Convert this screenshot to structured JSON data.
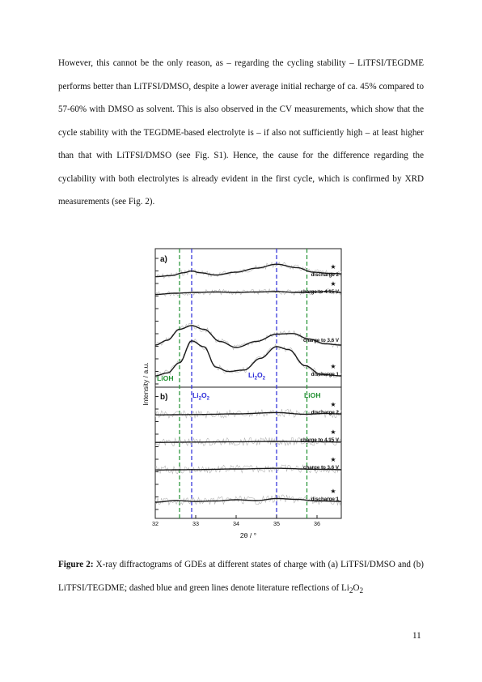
{
  "body": {
    "paragraph": "However, this cannot be the only reason, as – regarding the cycling stability – LiTFSI/TEGDME performs better than LiTFSI/DMSO, despite a lower average initial recharge of ca. 45% compared to 57-60% with DMSO as solvent. This is also observed in the CV measurements, which show that the cycle stability with the TEGDME-based electrolyte is – if also not sufficiently high – at least higher than that with LiTFSI/DMSO (see Fig. S1). Hence, the cause for the difference regarding the cyclability with both electrolytes is already evident in the first cycle, which is confirmed by XRD measurements (see Fig. 2)."
  },
  "caption": {
    "label": "Figure 2:",
    "text_before_sub": " X-ray diffractograms of GDEs at different states of charge with (a) LiTFSI/DMSO and (b) LiTFSI/TEGDME; dashed blue and green lines denote literature reflections of Li",
    "sub": "2",
    "text_after_sub": "O",
    "sub2": "2"
  },
  "page_number": "11",
  "chart_data": {
    "type": "line",
    "xlabel": "2θ / °",
    "ylabel": "Intensity / a.u.",
    "xlim": [
      32,
      36.6
    ],
    "xticks": [
      "32",
      "33",
      "34",
      "35",
      "36"
    ],
    "reference_lines": [
      {
        "label": "LiOH",
        "x": [
          32.6,
          35.75
        ],
        "color": "#1f8f2f"
      },
      {
        "label": "Li2O2",
        "label_main": "Li",
        "label_sub1": "2",
        "label_mid": "O",
        "label_sub2": "2",
        "x": [
          32.9,
          35.0
        ],
        "color": "#2a2ad8"
      }
    ],
    "panels": [
      {
        "label": "a)",
        "series": [
          {
            "name": "discharge 2",
            "star": true,
            "x": [
              32,
              32.4,
              32.7,
              32.9,
              33.1,
              33.5,
              34.0,
              34.5,
              35.0,
              35.5,
              35.9,
              36.3,
              36.6
            ],
            "y": [
              0.1,
              0.2,
              0.45,
              0.6,
              0.45,
              0.25,
              0.5,
              0.85,
              1.2,
              0.9,
              0.5,
              0.4,
              0.35
            ]
          },
          {
            "name": "charge to 4.15 V",
            "star": true,
            "x": [
              32,
              32.5,
              33.0,
              33.5,
              34.0,
              34.5,
              35.0,
              35.5,
              36.0,
              36.3,
              36.6
            ],
            "y": [
              0.05,
              0.2,
              0.3,
              0.35,
              0.3,
              0.35,
              0.4,
              0.3,
              0.35,
              0.45,
              0.3
            ]
          },
          {
            "name": "charge to 3.6 V",
            "star": false,
            "x": [
              32,
              32.3,
              32.6,
              32.9,
              33.2,
              33.6,
              34.0,
              34.5,
              35.0,
              35.4,
              35.8,
              36.2,
              36.6
            ],
            "y": [
              0.0,
              0.4,
              1.3,
              1.6,
              1.3,
              0.3,
              -0.2,
              0.3,
              0.9,
              0.95,
              0.5,
              0.1,
              0.0
            ]
          },
          {
            "name": "discharge 1",
            "star": true,
            "x": [
              32,
              32.3,
              32.6,
              32.9,
              33.2,
              33.5,
              33.8,
              34.2,
              34.6,
              35.0,
              35.3,
              35.7,
              36.1,
              36.6
            ],
            "y": [
              0.0,
              0.2,
              0.9,
              2.4,
              2.0,
              0.6,
              0.3,
              0.4,
              1.2,
              2.0,
              1.8,
              0.7,
              0.1,
              0.0
            ]
          }
        ]
      },
      {
        "label": "b)",
        "series": [
          {
            "name": "discharge 2",
            "star": true,
            "x": [
              32,
              33,
              34,
              35,
              35.7,
              36.2,
              36.6
            ],
            "y": [
              0.1,
              0.15,
              0.25,
              0.45,
              0.2,
              0.3,
              0.25
            ]
          },
          {
            "name": "charge to 4.15 V",
            "star": true,
            "x": [
              32,
              33,
              34,
              35,
              36,
              36.6
            ],
            "y": [
              0.1,
              0.15,
              0.2,
              0.25,
              0.2,
              0.15
            ]
          },
          {
            "name": "charge to 3.6 V",
            "star": true,
            "x": [
              32,
              33,
              34,
              35,
              36,
              36.6
            ],
            "y": [
              0.1,
              0.15,
              0.25,
              0.35,
              0.2,
              0.15
            ]
          },
          {
            "name": "discharge 1",
            "star": true,
            "x": [
              32,
              32.5,
              33.0,
              33.5,
              34.0,
              34.5,
              35.0,
              35.5,
              36.0,
              36.6
            ],
            "y": [
              0.0,
              0.2,
              0.1,
              0.15,
              0.3,
              0.2,
              0.45,
              0.35,
              0.15,
              0.1
            ]
          }
        ]
      }
    ]
  }
}
